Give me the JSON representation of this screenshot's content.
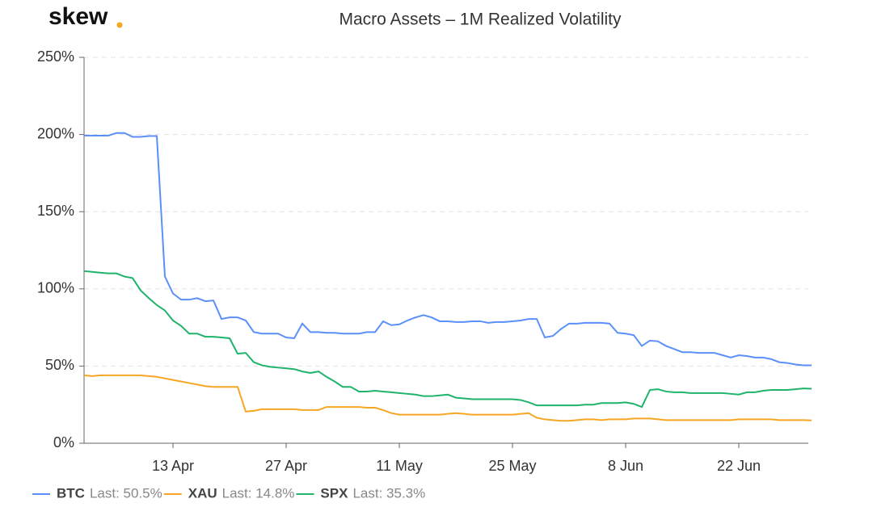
{
  "brand": "skew",
  "chart_data": {
    "type": "line",
    "title": "Macro Assets – 1M Realized Volatility",
    "categories": [
      null,
      null,
      null,
      null,
      null,
      null,
      null,
      null,
      null,
      null,
      null,
      "13 Apr",
      null,
      null,
      null,
      null,
      null,
      null,
      null,
      null,
      null,
      null,
      null,
      null,
      null,
      "27 Apr",
      null,
      null,
      null,
      null,
      null,
      null,
      null,
      null,
      null,
      null,
      null,
      null,
      null,
      "11 May",
      null,
      null,
      null,
      null,
      null,
      null,
      null,
      null,
      null,
      null,
      null,
      null,
      null,
      "25 May",
      null,
      null,
      null,
      null,
      null,
      null,
      null,
      null,
      null,
      null,
      null,
      null,
      null,
      "8 Jun",
      null,
      null,
      null,
      null,
      null,
      null,
      null,
      null,
      null,
      null,
      null,
      null,
      null,
      "22 Jun",
      null,
      null,
      null,
      null,
      null,
      null,
      null,
      null,
      null
    ],
    "ylim": [
      0,
      250
    ],
    "yticks": [
      {
        "value": 0,
        "label": "0%"
      },
      {
        "value": 50,
        "label": "50%"
      },
      {
        "value": 100,
        "label": "100%"
      },
      {
        "value": 150,
        "label": "150%"
      },
      {
        "value": 200,
        "label": "200%"
      },
      {
        "value": 250,
        "label": "250%"
      }
    ],
    "grid": true,
    "legend": "bottom-left",
    "series": [
      {
        "name": "BTC",
        "color": "#5b8ff9",
        "last_label": "Last: 50.5%",
        "values": [
          199.3,
          199.3,
          199.3,
          199.3,
          201,
          201,
          198.5,
          198.5,
          199,
          199,
          108,
          97,
          93,
          93,
          94,
          92,
          92.5,
          80.5,
          81.5,
          81.5,
          79.5,
          72,
          71,
          71,
          71,
          68.5,
          68,
          77.5,
          72,
          72,
          71.5,
          71.5,
          71,
          71,
          71,
          72,
          72,
          79,
          76.5,
          77,
          79.5,
          81.5,
          83,
          81.5,
          79,
          79,
          78.5,
          78.5,
          79,
          79,
          78,
          78.5,
          78.5,
          79,
          79.5,
          80.5,
          80.5,
          68.5,
          69.5,
          74,
          77.5,
          77.5,
          78,
          78,
          78,
          77.5,
          71.5,
          71,
          70,
          63,
          66.5,
          66,
          63,
          61,
          59,
          59,
          58.5,
          58.5,
          58.5,
          57,
          55.5,
          57,
          56.5,
          55.5,
          55.5,
          54.5,
          52.5,
          52,
          51,
          50.5,
          50.5
        ]
      },
      {
        "name": "XAU",
        "color": "#f6a623",
        "last_label": "Last: 14.8%",
        "values": [
          44,
          43.5,
          44,
          44,
          44,
          44,
          44,
          44,
          43.5,
          43,
          42,
          41,
          40,
          39,
          38,
          37,
          36.5,
          36.5,
          36.5,
          36.5,
          20.5,
          21,
          22,
          22,
          22,
          22,
          22,
          21.5,
          21.5,
          21.5,
          23.5,
          23.5,
          23.5,
          23.5,
          23.5,
          23,
          23,
          21.5,
          19.5,
          18.5,
          18.5,
          18.5,
          18.5,
          18.5,
          18.5,
          19,
          19.5,
          19,
          18.5,
          18.5,
          18.5,
          18.5,
          18.5,
          18.5,
          19,
          19.5,
          16.5,
          15.5,
          15,
          14.5,
          14.5,
          15,
          15.5,
          15.5,
          15,
          15.5,
          15.5,
          15.5,
          16,
          16,
          16,
          15.5,
          15,
          15,
          15,
          15,
          15,
          15,
          15,
          15,
          15,
          15.5,
          15.5,
          15.5,
          15.5,
          15.5,
          15,
          15,
          15,
          15,
          14.8
        ]
      },
      {
        "name": "SPX",
        "color": "#1fb36b",
        "last_label": "Last: 35.3%",
        "values": [
          111.5,
          111,
          110.5,
          110,
          110,
          108,
          107,
          99,
          94,
          89.5,
          86,
          79.5,
          76,
          71,
          71,
          69,
          69,
          68.5,
          68,
          58,
          58.5,
          52.5,
          50.5,
          49.5,
          49,
          48.5,
          48,
          46.5,
          45.5,
          46.5,
          43,
          40,
          36.5,
          36.5,
          33.5,
          33.5,
          34,
          33.5,
          33,
          32.5,
          32,
          31.5,
          30.5,
          30.5,
          31,
          31.5,
          29.5,
          29,
          28.5,
          28.5,
          28.5,
          28.5,
          28.5,
          28.5,
          28,
          26.5,
          24.5,
          24.5,
          24.5,
          24.5,
          24.5,
          24.5,
          25,
          25,
          26,
          26,
          26,
          26.5,
          25.5,
          23.5,
          34.5,
          35,
          33.5,
          33,
          33,
          32.5,
          32.5,
          32.5,
          32.5,
          32.5,
          32,
          31.5,
          33,
          33,
          34,
          34.5,
          34.5,
          34.5,
          35,
          35.5,
          35.3
        ]
      }
    ]
  }
}
